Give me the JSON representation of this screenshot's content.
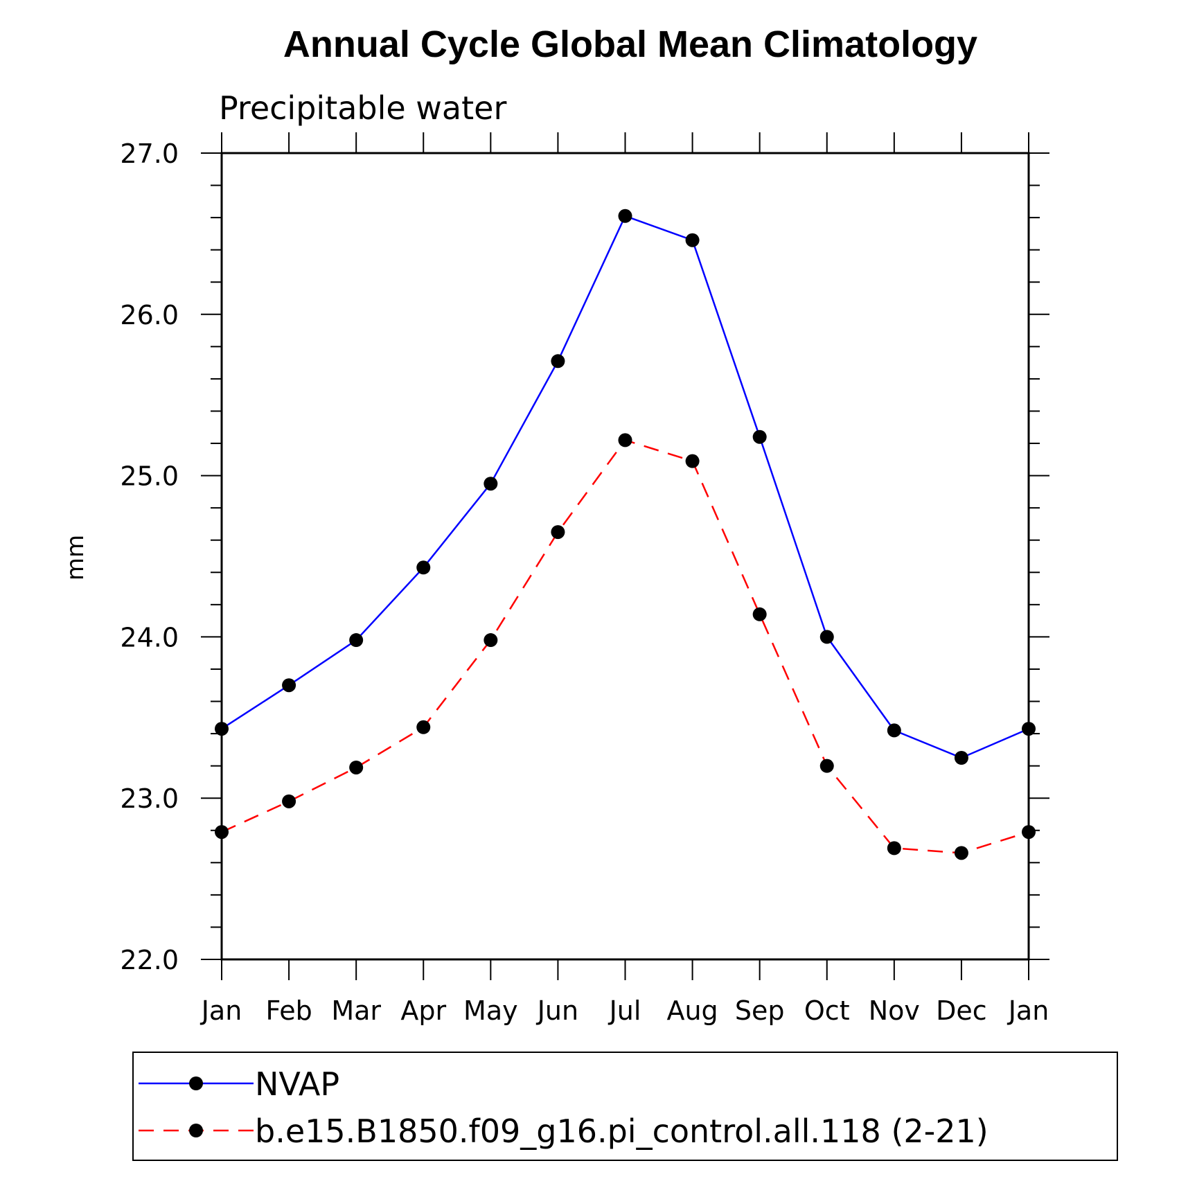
{
  "chart_data": {
    "type": "line",
    "title": "Annual Cycle Global Mean Climatology",
    "subtitle": "Precipitable water",
    "ylabel": "mm",
    "xlabel": "",
    "categories": [
      "Jan",
      "Feb",
      "Mar",
      "Apr",
      "May",
      "Jun",
      "Jul",
      "Aug",
      "Sep",
      "Oct",
      "Nov",
      "Dec",
      "Jan"
    ],
    "ylim": [
      22.0,
      27.0
    ],
    "yticks": [
      "22.0",
      "23.0",
      "24.0",
      "25.0",
      "26.0",
      "27.0"
    ],
    "grid": false,
    "legend_position": "bottom",
    "series": [
      {
        "name": "NVAP",
        "color": "#0000ff",
        "style": "solid",
        "marker": "filled-circle",
        "values": [
          23.43,
          23.7,
          23.98,
          24.43,
          24.95,
          25.71,
          26.61,
          26.46,
          25.24,
          24.0,
          23.42,
          23.25,
          23.43
        ]
      },
      {
        "name": "b.e15.B1850.f09_g16.pi_control.all.118 (2-21)",
        "color": "#ff0000",
        "style": "dashed",
        "marker": "filled-circle",
        "values": [
          22.79,
          22.98,
          23.19,
          23.44,
          23.98,
          24.65,
          25.22,
          25.09,
          24.14,
          23.2,
          22.69,
          22.66,
          22.79
        ]
      }
    ]
  }
}
